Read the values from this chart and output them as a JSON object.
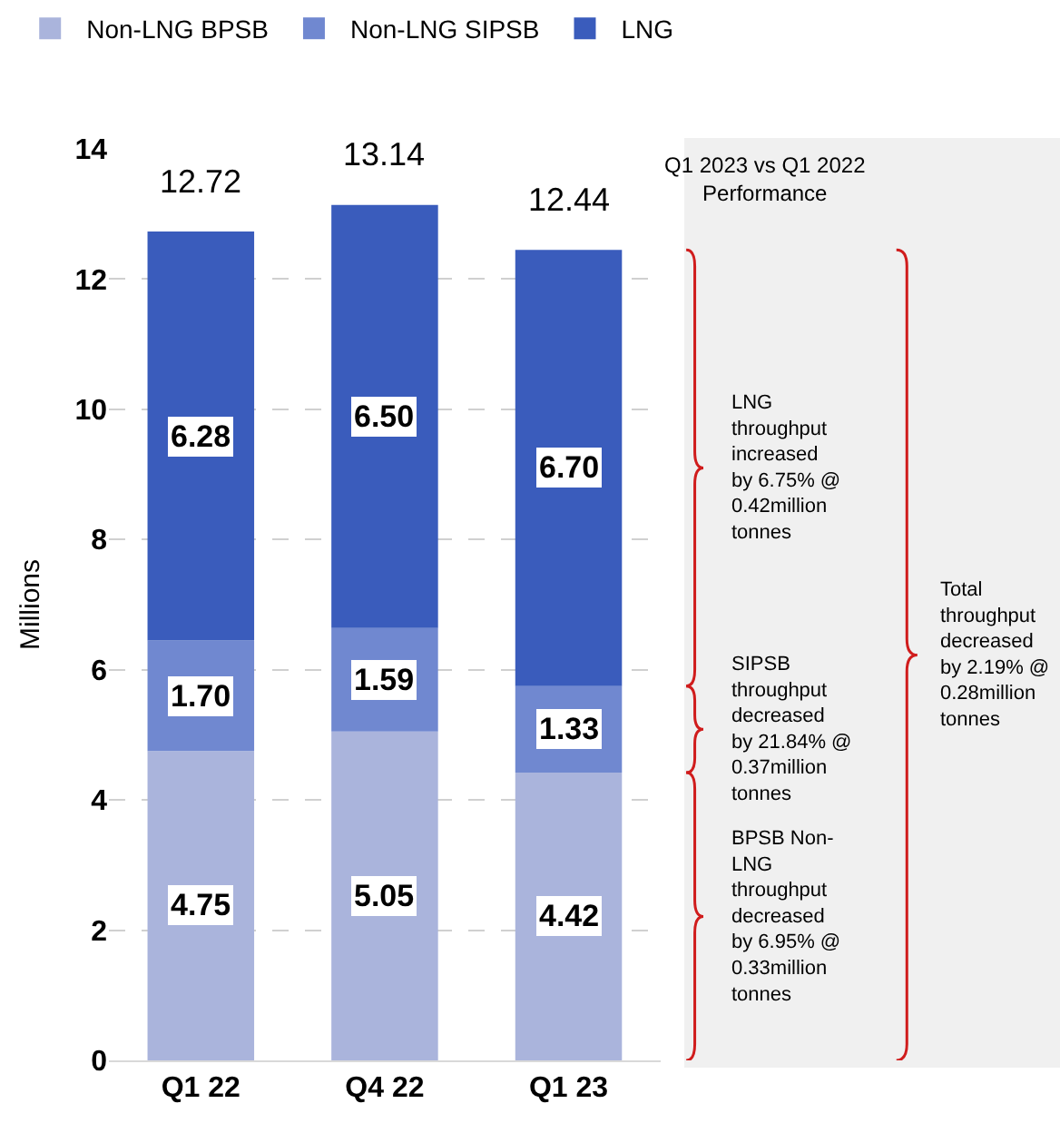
{
  "chart_data": {
    "type": "bar",
    "stacked": true,
    "categories": [
      "Q1 22",
      "Q4 22",
      "Q1 23"
    ],
    "series": [
      {
        "name": "Non-LNG BPSB",
        "color": "#aab4dc",
        "values": [
          4.75,
          5.05,
          4.42
        ],
        "value_labels": [
          "4.75",
          "5.05",
          "4.42"
        ]
      },
      {
        "name": "Non-LNG SIPSB",
        "color": "#7088d0",
        "values": [
          1.7,
          1.59,
          1.33
        ],
        "value_labels": [
          "1.70",
          "1.59",
          "1.33"
        ]
      },
      {
        "name": "LNG",
        "color": "#3a5cbc",
        "values": [
          6.28,
          6.5,
          6.7
        ],
        "value_labels": [
          "6.28",
          "6.50",
          "6.70"
        ]
      }
    ],
    "totals": [
      "12.72",
      "13.14",
      "12.44"
    ],
    "ylabel": "Millions",
    "ylim": [
      0,
      14
    ],
    "yticks": [
      0,
      2,
      4,
      6,
      8,
      10,
      12,
      14
    ],
    "grid": "y",
    "legend": "top left",
    "annotations": [
      "Q1 2023 vs Q1 2022\nPerformance",
      "BPSB Non-\nLNG\nthroughput\ndecreased\nby 6.95% @\n0.33million\ntonnes",
      "SIPSB\nthroughput\ndecreased\nby 21.84% @\n0.37million\ntonnes",
      "LNG\nthroughput\nincreased\nby 6.75% @\n0.42million\ntonnes",
      "Total\nthroughput\ndecreased\nby 2.19% @\n0.28million\ntonnes"
    ]
  }
}
